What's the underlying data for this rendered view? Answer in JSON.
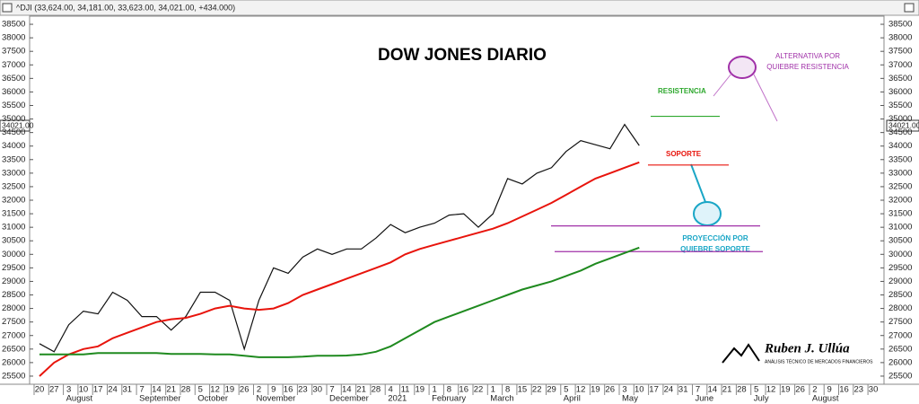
{
  "chart_data": {
    "type": "line",
    "header": "^DJI (33,624.00, 34,181.00, 33,623.00, 34,021.00, +434.000)",
    "title": "DOW JONES DIARIO",
    "last_price_label": "34021.00",
    "categories": [
      "20",
      "27",
      "3",
      "10",
      "17",
      "24",
      "31",
      "7",
      "14",
      "21",
      "28",
      "5",
      "12",
      "19",
      "26",
      "2",
      "9",
      "16",
      "23",
      "30",
      "7",
      "14",
      "21",
      "28",
      "4",
      "11",
      "19",
      "1",
      "8",
      "16",
      "22",
      "1",
      "8",
      "15",
      "22",
      "29",
      "5",
      "12",
      "19",
      "26",
      "3",
      "10",
      "17",
      "24",
      "31",
      "7",
      "14",
      "21",
      "28",
      "5",
      "12",
      "19",
      "26",
      "2",
      "9",
      "16",
      "23",
      "30"
    ],
    "months": [
      "August",
      "September",
      "October",
      "November",
      "December",
      "2021",
      "February",
      "March",
      "April",
      "May",
      "June",
      "July",
      "August"
    ],
    "series": [
      {
        "color": "#111111",
        "values": [
          26700,
          26400,
          27400,
          27900,
          27800,
          28600,
          28300,
          27700,
          27700,
          27200,
          27700,
          28600,
          28600,
          28300,
          26500,
          28300,
          29500,
          29300,
          29900,
          30200,
          30000,
          30200,
          30200,
          30600,
          31100,
          30800,
          31000,
          31150,
          31450,
          31500,
          31000,
          31500,
          32800,
          32600,
          33000,
          33200,
          33800,
          34200,
          34050,
          33900,
          34800,
          34021,
          null,
          null,
          null,
          null,
          null,
          null,
          null,
          null,
          null,
          null,
          null,
          null,
          null,
          null,
          null,
          null
        ]
      },
      {
        "color": "#e8140c",
        "values": [
          25500,
          26000,
          26300,
          26500,
          26600,
          26900,
          27100,
          27300,
          27500,
          27600,
          27650,
          27800,
          28000,
          28100,
          28000,
          27950,
          28000,
          28200,
          28500,
          28700,
          28900,
          29100,
          29300,
          29500,
          29700,
          30000,
          30200,
          30350,
          30500,
          30650,
          30800,
          30950,
          31150,
          31400,
          31650,
          31900,
          32200,
          32500,
          32800,
          33000,
          33200,
          33400,
          null,
          null,
          null,
          null,
          null,
          null,
          null,
          null,
          null,
          null,
          null,
          null,
          null,
          null,
          null,
          null
        ]
      },
      {
        "color": "#1f8a1f",
        "values": [
          26300,
          26300,
          26300,
          26300,
          26350,
          26350,
          26350,
          26350,
          26350,
          26320,
          26320,
          26320,
          26300,
          26300,
          26250,
          26200,
          26200,
          26200,
          26220,
          26250,
          26250,
          26260,
          26300,
          26400,
          26600,
          26900,
          27200,
          27500,
          27700,
          27900,
          28100,
          28300,
          28500,
          28700,
          28850,
          29000,
          29200,
          29400,
          29650,
          29850,
          30050,
          30250,
          null,
          null,
          null,
          null,
          null,
          null,
          null,
          null,
          null,
          null,
          null,
          null,
          null,
          null,
          null,
          null
        ]
      }
    ],
    "ylim": [
      25200,
      38800
    ],
    "yticks": [
      25500,
      26000,
      26500,
      27000,
      27500,
      28000,
      28500,
      29000,
      29500,
      30000,
      30500,
      31000,
      31500,
      32000,
      32500,
      33000,
      33500,
      34000,
      34500,
      35000,
      35500,
      36000,
      36500,
      37000,
      37500,
      38000,
      38500
    ],
    "resistance": {
      "label": "RESISTENCIA",
      "level": 35100
    },
    "support": {
      "label": "SOPORTE",
      "level": 33300
    },
    "alternative": {
      "label": [
        "ALTERNATIVA  POR",
        "QUIEBRE RESISTENCIA"
      ]
    },
    "projection": {
      "label": [
        "PROYECCIÓN POR",
        "QUIEBRE SOPORTE"
      ],
      "levels": [
        31050,
        30100
      ]
    },
    "logo": {
      "name": "Ruben J. Ullúa",
      "tagline": "ANÁLISIS TÉCNICO DE MERCADOS FINANCIEROS"
    }
  }
}
